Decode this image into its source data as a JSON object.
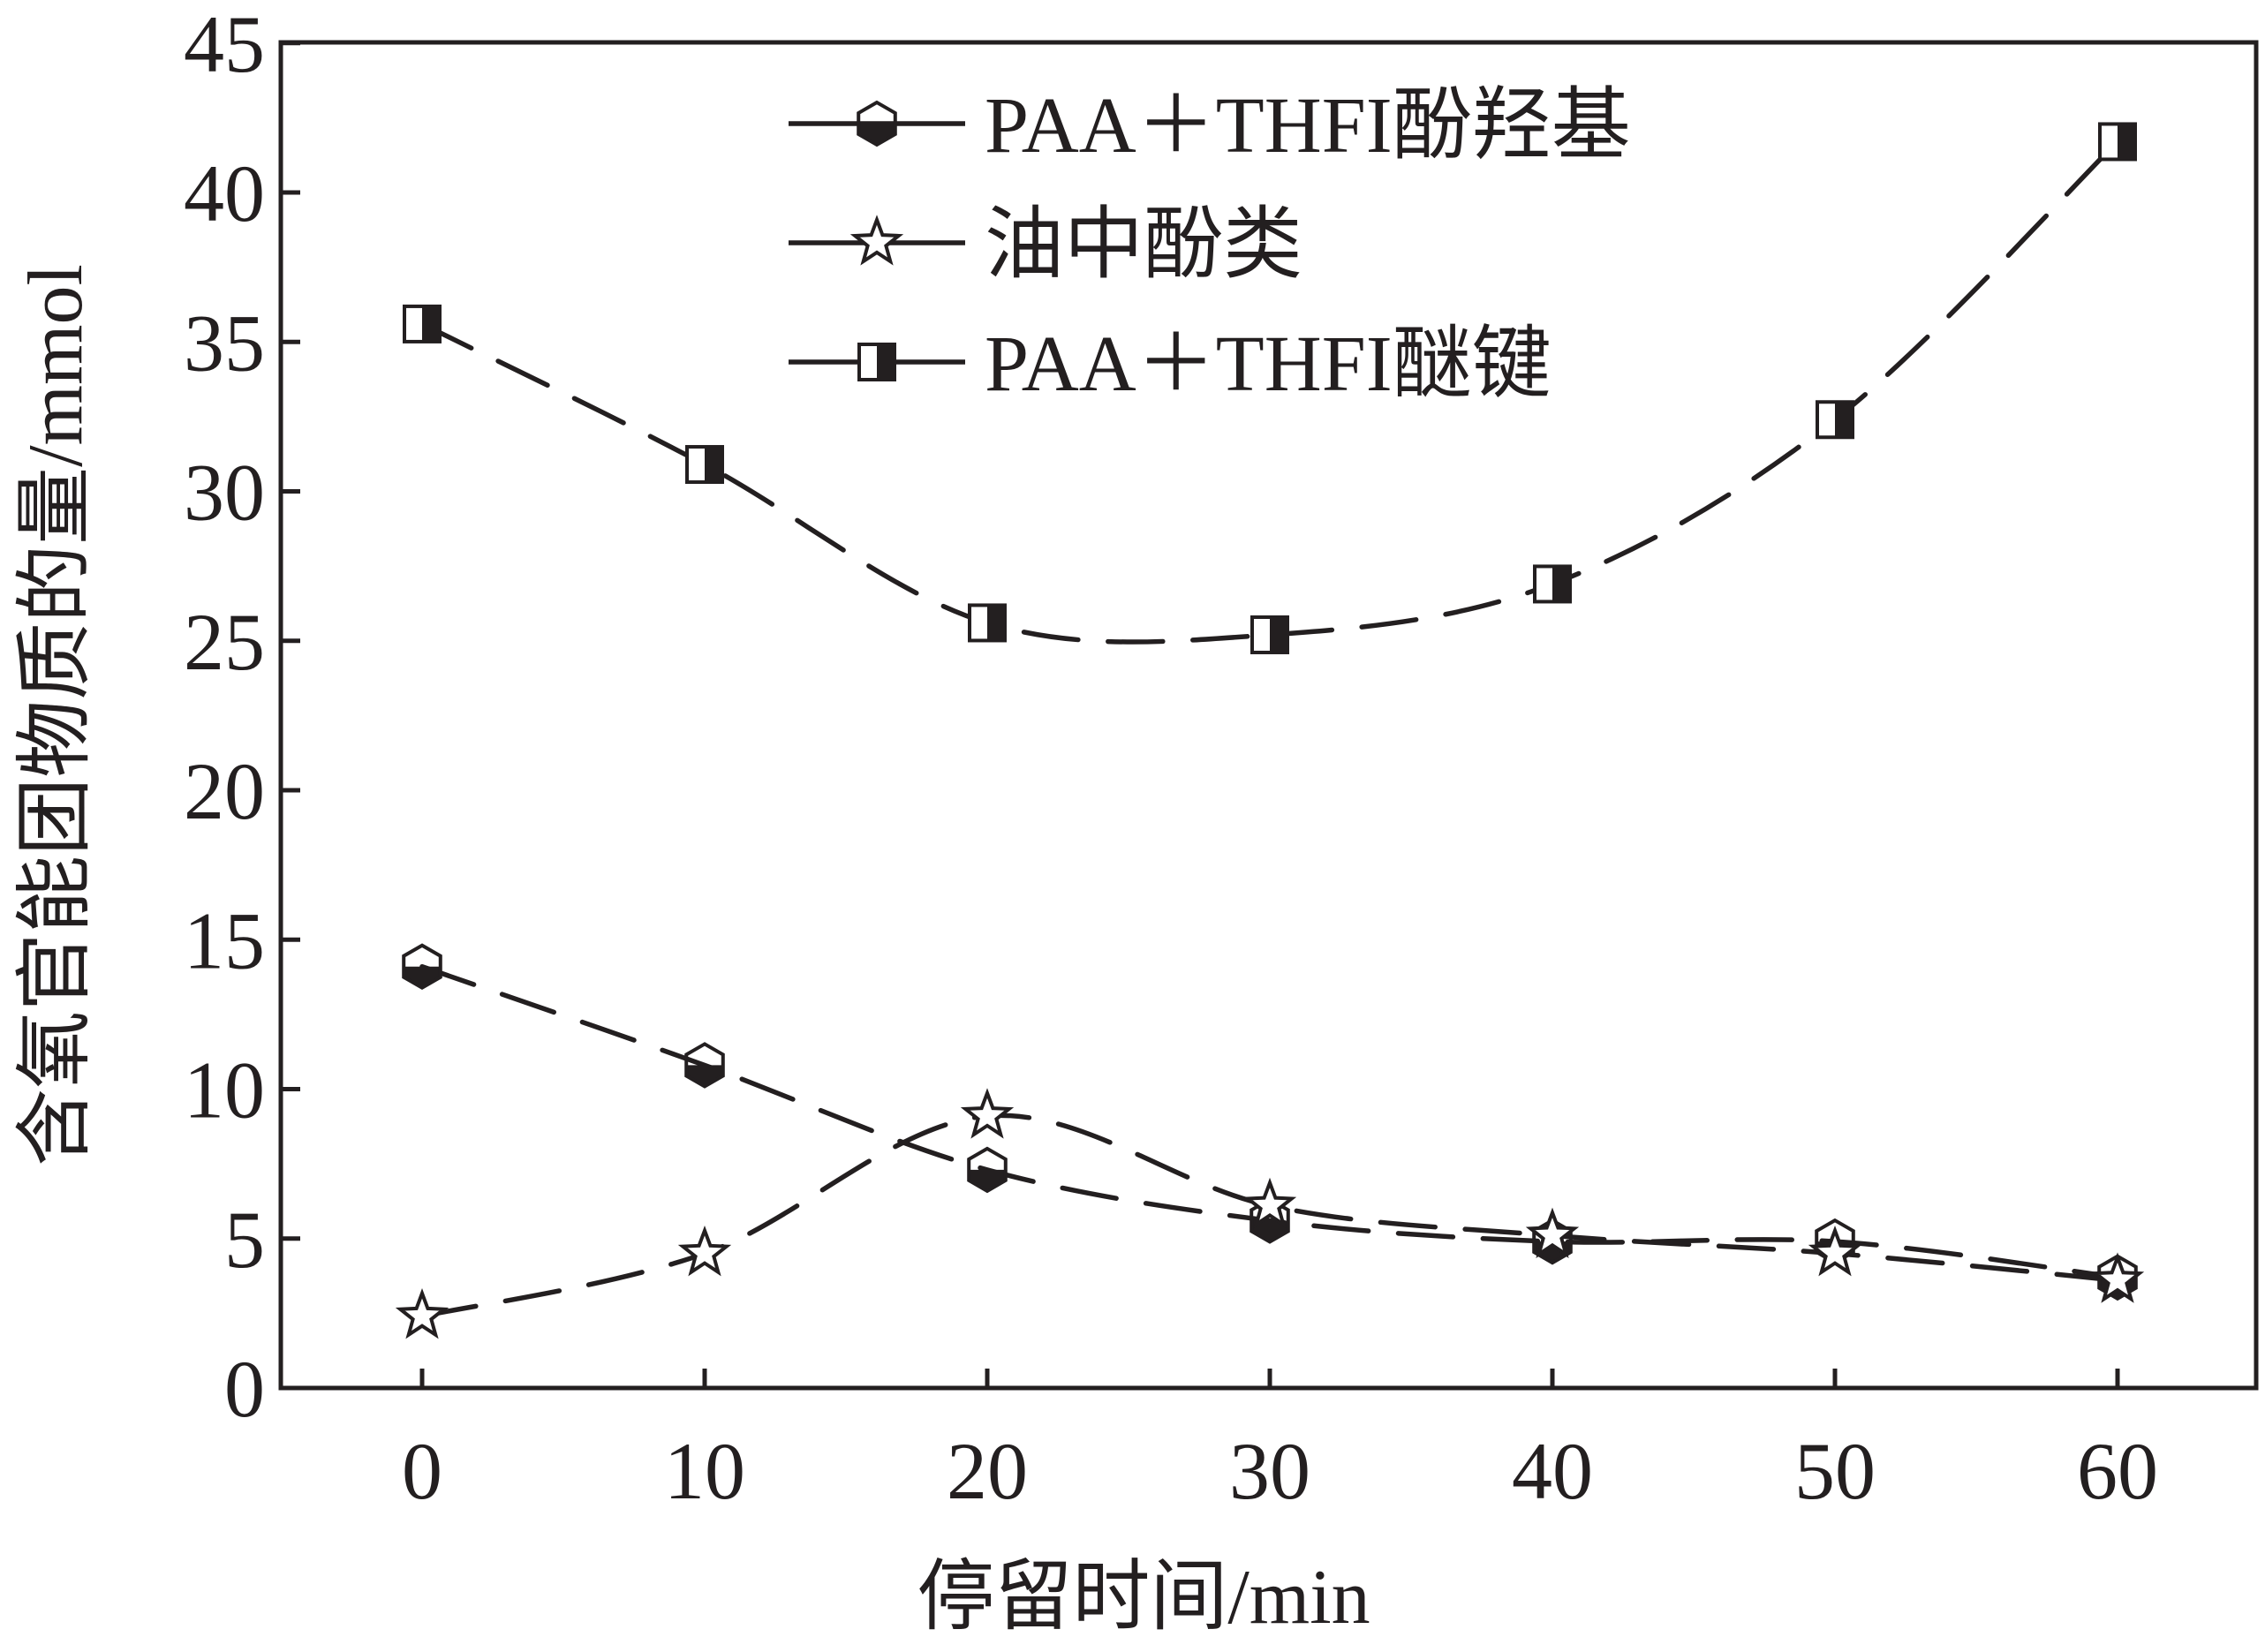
{
  "chart_data": {
    "type": "line",
    "title": "",
    "xlabel": "停留时间/min",
    "ylabel": "含氧官能团物质的量/mmol",
    "x": [
      0,
      10,
      20,
      30,
      40,
      50,
      60
    ],
    "xlim": [
      -5,
      65
    ],
    "ylim": [
      0,
      45
    ],
    "xticks": [
      "0",
      "10",
      "20",
      "30",
      "40",
      "50",
      "60"
    ],
    "yticks": [
      "0",
      "5",
      "10",
      "15",
      "20",
      "25",
      "30",
      "35",
      "40",
      "45"
    ],
    "grid": false,
    "legend_position": "top",
    "series": [
      {
        "name": "PAA＋THFI酚羟基",
        "marker": "hexagon-bottom-half-filled",
        "values": [
          14.1,
          10.8,
          7.3,
          5.6,
          4.9,
          4.9,
          3.7
        ]
      },
      {
        "name": "油中酚类",
        "marker": "star-open",
        "values": [
          2.4,
          4.5,
          9.1,
          6.1,
          5.1,
          4.5,
          3.6
        ]
      },
      {
        "name": "PAA＋THFI醚键",
        "marker": "square-right-half-filled",
        "values": [
          35.6,
          30.9,
          25.6,
          25.2,
          26.9,
          32.4,
          41.7
        ]
      }
    ],
    "color": "#231f20"
  }
}
